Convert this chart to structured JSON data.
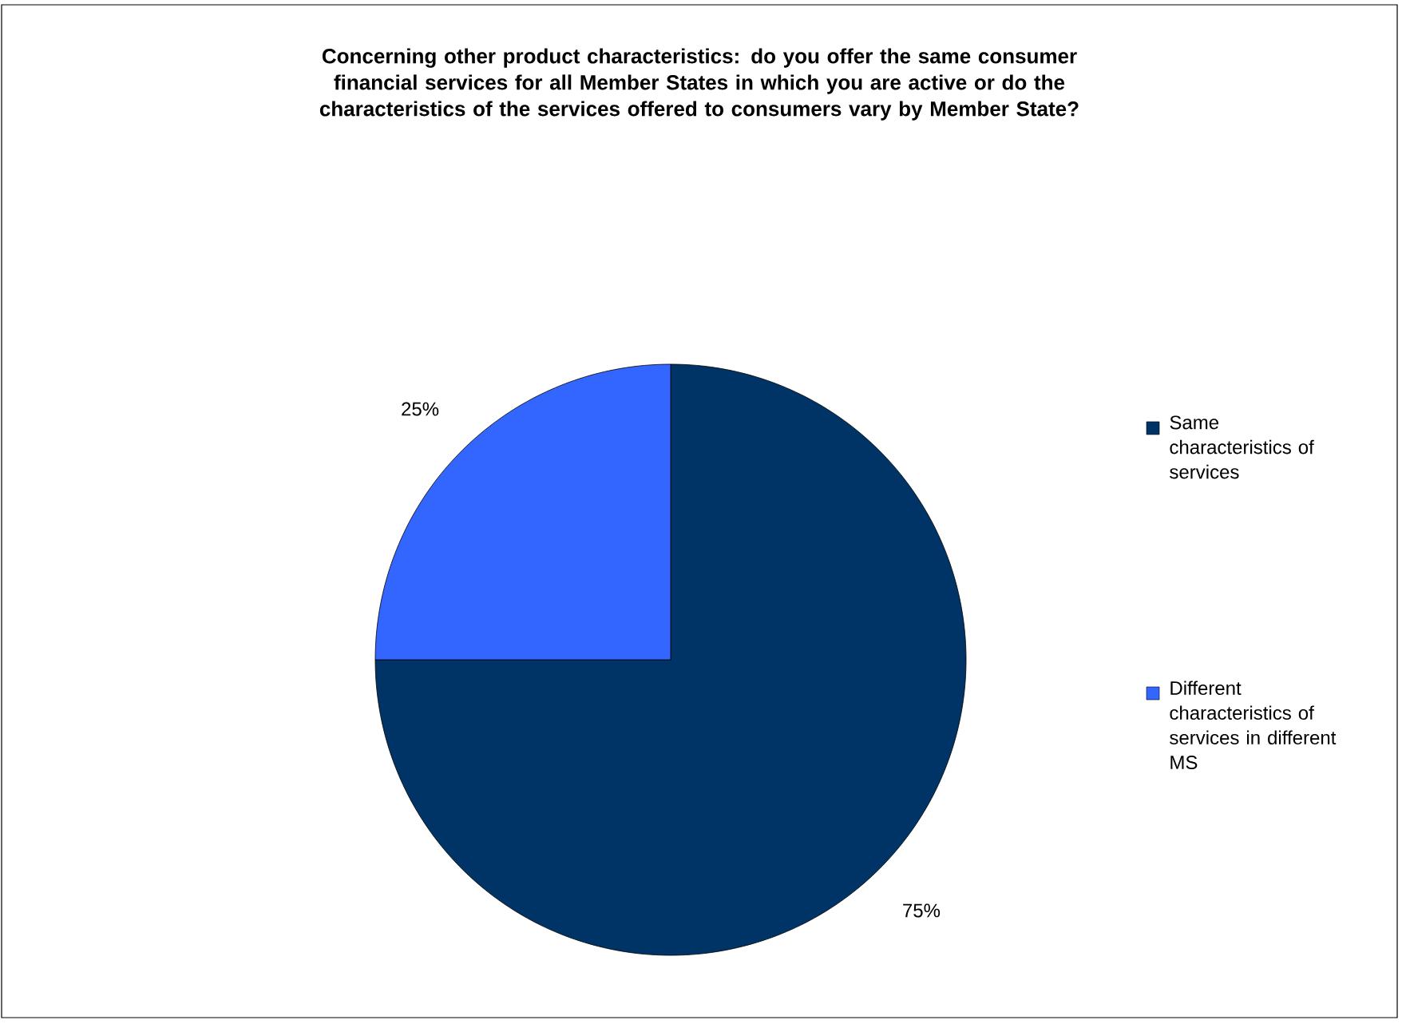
{
  "chart_data": {
    "type": "pie",
    "title": "Concerning other product characteristics: do you offer the same consumer financial services for all Member States in which you are active or do the characteristics of the services offered to consumers vary by Member State?",
    "categories": [
      "Same characteristics of services",
      "Different characteristics of services in different MS"
    ],
    "values": [
      75,
      25
    ],
    "colors": [
      "#003366",
      "#3366ff"
    ],
    "value_labels": [
      "75%",
      "25%"
    ],
    "legend": "right"
  }
}
